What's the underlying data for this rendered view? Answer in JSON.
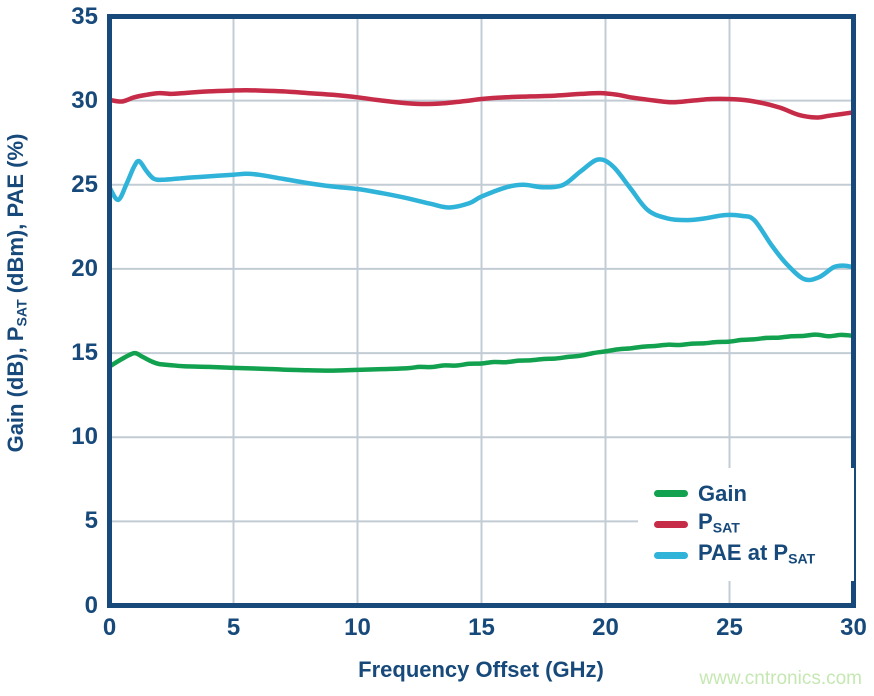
{
  "figure": {
    "watermark": "www.cntronics.com"
  },
  "colors": {
    "navy": "#17497a",
    "frame": "#17497a",
    "grid": "#c2ccd4",
    "background": "#ffffff",
    "gain_green": "#12a14e",
    "psat_red": "#c62b48",
    "pae_cyan": "#2fb3d9",
    "watermark_green": "#c5e8b3"
  },
  "chart_data": {
    "type": "line",
    "title": "",
    "xlabel": "Frequency Offset (GHz)",
    "ylabel": "Gain (dB), P_SAT (dBm), PAE (%)",
    "ylabel_parts": [
      {
        "t": "Gain (dB), P"
      },
      {
        "t": "SAT",
        "sub": true
      },
      {
        "t": " (dBm), PAE (%)"
      }
    ],
    "xlim": [
      0,
      30
    ],
    "ylim": [
      0,
      35
    ],
    "xticks": [
      0,
      5,
      10,
      15,
      20,
      25,
      30
    ],
    "yticks": [
      0,
      5,
      10,
      15,
      20,
      25,
      30,
      35
    ],
    "grid": true,
    "legend_position": "inside lower-right",
    "series": [
      {
        "id": "gain",
        "name": "Gain",
        "label_parts": [
          {
            "t": "Gain"
          }
        ],
        "color": "#12a14e",
        "points": [
          [
            0,
            14.2
          ],
          [
            0.5,
            14.65
          ],
          [
            1,
            15.0
          ],
          [
            1.3,
            14.8
          ],
          [
            1.7,
            14.5
          ],
          [
            2,
            14.35
          ],
          [
            2.5,
            14.28
          ],
          [
            3,
            14.22
          ],
          [
            4,
            14.18
          ],
          [
            5,
            14.12
          ],
          [
            6,
            14.08
          ],
          [
            7,
            14.02
          ],
          [
            8,
            13.98
          ],
          [
            9,
            13.96
          ],
          [
            10,
            14.0
          ],
          [
            11,
            14.05
          ],
          [
            12,
            14.1
          ],
          [
            12.5,
            14.18
          ],
          [
            13,
            14.17
          ],
          [
            13.5,
            14.27
          ],
          [
            14,
            14.26
          ],
          [
            14.5,
            14.36
          ],
          [
            15,
            14.38
          ],
          [
            15.5,
            14.47
          ],
          [
            16,
            14.46
          ],
          [
            16.5,
            14.55
          ],
          [
            17,
            14.57
          ],
          [
            17.5,
            14.65
          ],
          [
            18,
            14.68
          ],
          [
            18.5,
            14.77
          ],
          [
            19,
            14.85
          ],
          [
            19.5,
            15.0
          ],
          [
            20,
            15.1
          ],
          [
            20.5,
            15.22
          ],
          [
            21,
            15.28
          ],
          [
            21.5,
            15.38
          ],
          [
            22,
            15.42
          ],
          [
            22.5,
            15.5
          ],
          [
            23,
            15.48
          ],
          [
            23.5,
            15.56
          ],
          [
            24,
            15.58
          ],
          [
            24.5,
            15.66
          ],
          [
            25,
            15.68
          ],
          [
            25.5,
            15.78
          ],
          [
            26,
            15.82
          ],
          [
            26.5,
            15.9
          ],
          [
            27,
            15.92
          ],
          [
            27.5,
            16.0
          ],
          [
            28,
            16.02
          ],
          [
            28.5,
            16.1
          ],
          [
            29,
            16.0
          ],
          [
            29.5,
            16.08
          ],
          [
            30,
            16.02
          ]
        ]
      },
      {
        "id": "psat",
        "name": "PSAT",
        "label_parts": [
          {
            "t": "P"
          },
          {
            "t": "SAT",
            "sub": true
          }
        ],
        "color": "#c62b48",
        "points": [
          [
            0,
            30.05
          ],
          [
            0.5,
            29.95
          ],
          [
            1,
            30.2
          ],
          [
            1.5,
            30.35
          ],
          [
            2,
            30.45
          ],
          [
            2.5,
            30.4
          ],
          [
            3,
            30.45
          ],
          [
            4,
            30.55
          ],
          [
            5,
            30.6
          ],
          [
            5.5,
            30.62
          ],
          [
            6,
            30.6
          ],
          [
            7,
            30.55
          ],
          [
            8,
            30.45
          ],
          [
            9,
            30.35
          ],
          [
            10,
            30.2
          ],
          [
            11,
            30.0
          ],
          [
            12,
            29.85
          ],
          [
            12.7,
            29.8
          ],
          [
            13.5,
            29.85
          ],
          [
            14.5,
            30.0
          ],
          [
            15,
            30.1
          ],
          [
            16,
            30.2
          ],
          [
            17,
            30.25
          ],
          [
            18,
            30.3
          ],
          [
            19,
            30.4
          ],
          [
            19.8,
            30.45
          ],
          [
            20.5,
            30.35
          ],
          [
            21,
            30.2
          ],
          [
            22,
            30.0
          ],
          [
            22.7,
            29.9
          ],
          [
            23.5,
            30.0
          ],
          [
            24.3,
            30.1
          ],
          [
            25.2,
            30.08
          ],
          [
            26,
            29.95
          ],
          [
            27,
            29.6
          ],
          [
            27.8,
            29.15
          ],
          [
            28.5,
            29.0
          ],
          [
            29,
            29.1
          ],
          [
            29.5,
            29.2
          ],
          [
            30,
            29.3
          ]
        ]
      },
      {
        "id": "pae",
        "name": "PAE at PSAT",
        "label_parts": [
          {
            "t": "PAE at P"
          },
          {
            "t": "SAT",
            "sub": true
          }
        ],
        "color": "#2fb3d9",
        "points": [
          [
            0,
            24.85
          ],
          [
            0.35,
            24.1
          ],
          [
            0.7,
            25.1
          ],
          [
            1,
            26.1
          ],
          [
            1.2,
            26.4
          ],
          [
            1.5,
            25.8
          ],
          [
            1.8,
            25.35
          ],
          [
            2.2,
            25.3
          ],
          [
            3,
            25.4
          ],
          [
            4,
            25.5
          ],
          [
            5,
            25.6
          ],
          [
            5.5,
            25.65
          ],
          [
            6,
            25.6
          ],
          [
            7,
            25.35
          ],
          [
            8,
            25.1
          ],
          [
            9,
            24.9
          ],
          [
            10,
            24.75
          ],
          [
            11,
            24.5
          ],
          [
            12,
            24.2
          ],
          [
            13,
            23.85
          ],
          [
            13.7,
            23.65
          ],
          [
            14.5,
            23.9
          ],
          [
            15,
            24.3
          ],
          [
            16,
            24.85
          ],
          [
            16.7,
            25.0
          ],
          [
            17.5,
            24.85
          ],
          [
            18.3,
            25.0
          ],
          [
            19,
            25.8
          ],
          [
            19.7,
            26.5
          ],
          [
            20.3,
            26.1
          ],
          [
            21,
            24.8
          ],
          [
            21.7,
            23.5
          ],
          [
            22.5,
            23.0
          ],
          [
            23.3,
            22.9
          ],
          [
            24,
            23.0
          ],
          [
            24.8,
            23.2
          ],
          [
            25.5,
            23.15
          ],
          [
            26,
            22.9
          ],
          [
            26.7,
            21.4
          ],
          [
            27.3,
            20.3
          ],
          [
            28,
            19.4
          ],
          [
            28.6,
            19.5
          ],
          [
            29.2,
            20.1
          ],
          [
            29.6,
            20.2
          ],
          [
            30,
            20.1
          ]
        ]
      }
    ]
  }
}
